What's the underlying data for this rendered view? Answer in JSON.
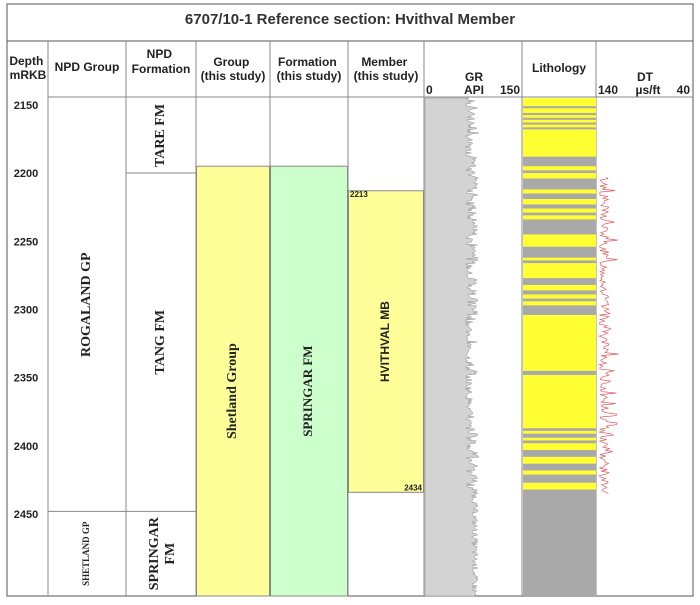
{
  "title": "6707/10-1 Reference section: Hvithval  Member",
  "headers": {
    "depth": [
      "Depth",
      "mRKB"
    ],
    "npd_group": [
      "NPD Group"
    ],
    "npd_formation": [
      "NPD",
      "Formation"
    ],
    "group": [
      "Group",
      "(this study)"
    ],
    "formation": [
      "Formation",
      "(this study)"
    ],
    "member": [
      "Member",
      "(this study)"
    ],
    "gr": {
      "name": "GR",
      "unit": "API",
      "min": "0",
      "max": "150"
    },
    "lithology": [
      "Lithology"
    ],
    "dt": {
      "name": "DT",
      "unit": "µs/ft",
      "min": "140",
      "max": "40"
    }
  },
  "depth_axis": {
    "top": 2145,
    "bottom": 2510,
    "ticks": [
      "2150",
      "2200",
      "2250",
      "2300",
      "2350",
      "2400",
      "2450"
    ]
  },
  "npd_groups": [
    {
      "name": "ROGALAND GP",
      "top": 2145,
      "base": 2448
    },
    {
      "name": "SHETLAND GP",
      "top": 2448,
      "base": 2510
    }
  ],
  "npd_formations": [
    {
      "name": "TARE FM",
      "top": 2145,
      "base": 2200
    },
    {
      "name": "TANG FM",
      "top": 2200,
      "base": 2448
    },
    {
      "name": "SPRINGAR FM",
      "top": 2448,
      "base": 2510
    }
  ],
  "group_study": {
    "name": "Shetland Group",
    "top": 2195,
    "base": 2510,
    "color": "#ffff99"
  },
  "formation_study": {
    "name": "SPRINGAR FM",
    "top": 2195,
    "base": 2510,
    "color": "#ccffcc"
  },
  "member_study": {
    "name": "HVITHVAL MB",
    "top": 2213,
    "base": 2434,
    "top_label": "2213",
    "base_label": "2434",
    "color": "#ffff99"
  },
  "lithology": {
    "sand_color": "#ffff33",
    "shale_color": "#a9a9a9",
    "shale_beds": [
      [
        2151,
        2152.5
      ],
      [
        2156,
        2157.5
      ],
      [
        2159.5,
        2161
      ],
      [
        2163,
        2164.5
      ],
      [
        2166.5,
        2168
      ],
      [
        2188,
        2195
      ],
      [
        2198,
        2200
      ],
      [
        2204,
        2212
      ],
      [
        2215,
        2219
      ],
      [
        2223,
        2226
      ],
      [
        2229,
        2231
      ],
      [
        2234,
        2245
      ],
      [
        2254,
        2262
      ],
      [
        2264,
        2266
      ],
      [
        2277,
        2282
      ],
      [
        2286,
        2289
      ],
      [
        2292,
        2294
      ],
      [
        2297,
        2304
      ],
      [
        2345,
        2348
      ],
      [
        2387,
        2389
      ],
      [
        2391,
        2394
      ],
      [
        2396,
        2398
      ],
      [
        2403,
        2408
      ],
      [
        2413,
        2418
      ],
      [
        2421,
        2427
      ],
      [
        2432,
        2510
      ]
    ]
  }
}
